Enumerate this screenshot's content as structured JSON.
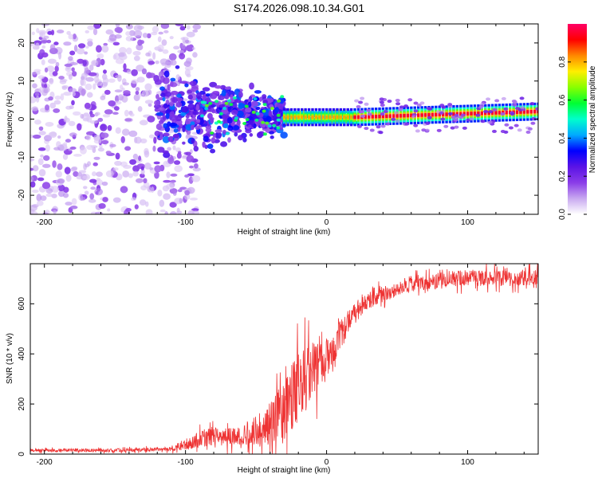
{
  "title": "S174.2026.098.10.34.G01",
  "colors": {
    "snr_line": "#ee3333",
    "colormap": [
      "#ffffff",
      "#c8a8f0",
      "#8a3ce8",
      "#5a14e6",
      "#0000ff",
      "#00aaff",
      "#00ffcc",
      "#00ff33",
      "#88ff00",
      "#ffee00",
      "#ff8800",
      "#ff0000",
      "#ff0066"
    ]
  },
  "chart_data": [
    {
      "type": "heatmap",
      "title": "",
      "xlabel": "Height of straight line (km)",
      "ylabel": "Frequency (Hz)",
      "xlim": [
        -210,
        150
      ],
      "ylim": [
        -25,
        25
      ],
      "xticks": [
        -200,
        -100,
        0,
        100
      ],
      "xtick_labels": [
        "-200",
        "-100",
        "0",
        "100"
      ],
      "yticks": [
        -20,
        -10,
        0,
        10,
        20
      ],
      "ytick_labels": [
        "-20",
        "-10",
        "0",
        "10",
        "20"
      ],
      "features": [
        {
          "region": "noise",
          "x_range": [
            -210,
            -100
          ],
          "freq_range": [
            -25,
            25
          ],
          "amplitude": [
            0.05,
            0.2
          ]
        },
        {
          "region": "scatter",
          "x_range": [
            -100,
            -30
          ],
          "freq_range": [
            -12,
            12
          ],
          "amplitude": [
            0.15,
            0.4
          ]
        },
        {
          "region": "transition",
          "x_range": [
            -30,
            20
          ],
          "freq_range": [
            -1,
            2
          ],
          "amplitude": [
            0.4,
            1.0
          ]
        },
        {
          "region": "line",
          "x_range": [
            20,
            150
          ],
          "center_freq": [
            0.5,
            2
          ],
          "amplitude": [
            0.7,
            1.0
          ]
        }
      ],
      "colorbar": {
        "label": "Normalized spectral amplitude",
        "min": 0.0,
        "max": 1.0,
        "ticks": [
          0.0,
          0.2,
          0.4,
          0.6,
          0.8
        ],
        "tick_labels": [
          "0.0",
          "0.2",
          "0.4",
          "0.6",
          "0.8"
        ]
      }
    },
    {
      "type": "line",
      "title": "",
      "xlabel": "Height of straight line (km)",
      "ylabel": "SNR (10 * v/v)",
      "xlim": [
        -210,
        150
      ],
      "ylim": [
        0,
        760
      ],
      "xticks": [
        -200,
        -100,
        0,
        100
      ],
      "xtick_labels": [
        "-200",
        "-100",
        "0",
        "100"
      ],
      "yticks": [
        0,
        200,
        400,
        600
      ],
      "ytick_labels": [
        "0",
        "200",
        "400",
        "600"
      ],
      "series": [
        {
          "name": "SNR",
          "x": [
            -210,
            -150,
            -110,
            -100,
            -90,
            -80,
            -70,
            -60,
            -50,
            -40,
            -30,
            -25,
            -20,
            -15,
            -10,
            -5,
            0,
            5,
            10,
            15,
            20,
            25,
            30,
            40,
            50,
            60,
            80,
            100,
            120,
            150
          ],
          "values": [
            15,
            15,
            20,
            40,
            60,
            70,
            70,
            75,
            85,
            120,
            170,
            220,
            270,
            300,
            330,
            360,
            390,
            430,
            470,
            530,
            560,
            590,
            610,
            640,
            660,
            680,
            695,
            705,
            700,
            705
          ],
          "noise": [
            8,
            8,
            10,
            30,
            45,
            45,
            45,
            45,
            70,
            110,
            160,
            170,
            180,
            170,
            150,
            120,
            100,
            90,
            80,
            60,
            50,
            45,
            40,
            40,
            40,
            40,
            40,
            40,
            40,
            40
          ]
        }
      ]
    }
  ]
}
